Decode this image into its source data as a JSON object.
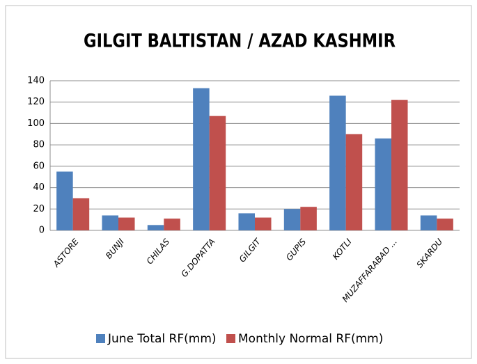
{
  "chart_data": {
    "type": "bar",
    "title": "GILGIT BALTISTAN / AZAD KASHMIR",
    "categories": [
      "ASTORE",
      "BUNJI",
      "CHILAS",
      "G.DOPATTA",
      "GILGIT",
      "GUPIS",
      "KOTLI",
      "MUZAFFARABAD ...",
      "SKARDU"
    ],
    "series": [
      {
        "name": "June Total RF(mm)",
        "color": "#4f81bd",
        "values": [
          55,
          14,
          5,
          133,
          16,
          20,
          126,
          86,
          14
        ]
      },
      {
        "name": "Monthly Normal RF(mm)",
        "color": "#c0504d",
        "values": [
          30,
          12,
          11,
          107,
          12,
          22,
          90,
          122,
          11
        ]
      }
    ],
    "ylim": [
      0,
      140
    ],
    "yticks": [
      0,
      20,
      40,
      60,
      80,
      100,
      120,
      140
    ],
    "grid": true,
    "legend": "bottom"
  }
}
